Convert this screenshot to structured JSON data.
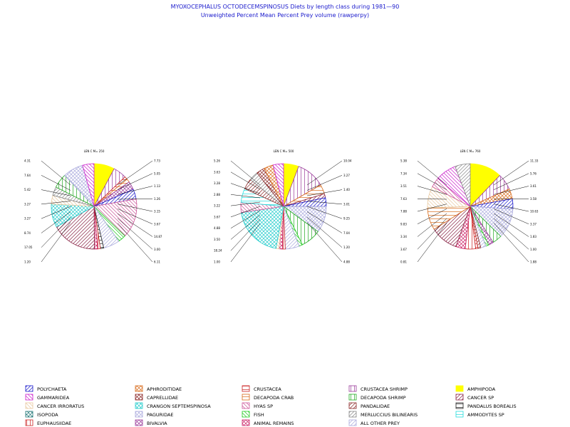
{
  "chart_data": {
    "type": "pie",
    "title": "MYOXOCEPHALUS  OCTODECEMSPINOSUS  Diets by length class during  1981—90",
    "subtitle": "Unweighted  Percent  Mean  Percent  Prey   volume  (rawperpy)",
    "legend": [
      {
        "label": "POLYCHAETA",
        "color": "#1a1acc",
        "pattern": "hatch-ne"
      },
      {
        "label": "APHRODITIDAE",
        "color": "#d86a1a",
        "pattern": "cross"
      },
      {
        "label": "CRUSTACEA",
        "color": "#cc2222",
        "pattern": "horizontal"
      },
      {
        "label": "CRUSTACEA  SHRIMP",
        "color": "#9a3a9a",
        "pattern": "vertical"
      },
      {
        "label": "AMPHIPODA",
        "color": "#ffff00",
        "pattern": "solid"
      },
      {
        "label": "GAMMARIDEA",
        "color": "#cc22cc",
        "pattern": "hatch-nw"
      },
      {
        "label": "CAPRELLIDAE",
        "color": "#882222",
        "pattern": "cross"
      },
      {
        "label": "DECAPODA  CRAB",
        "color": "#d86a1a",
        "pattern": "horizontal"
      },
      {
        "label": "DECAPODA  SHRIMP",
        "color": "#22aa22",
        "pattern": "vertical"
      },
      {
        "label": "CANCER  SP",
        "color": "#882244",
        "pattern": "hatch-ne"
      },
      {
        "label": "CANCER  IRRORATUS",
        "color": "#e8c9a0",
        "pattern": "hatch-nw"
      },
      {
        "label": "CRANGON  SEPTEMSPINOSA",
        "color": "#22cccc",
        "pattern": "cross"
      },
      {
        "label": "HYAS  SP",
        "color": "#cc5599",
        "pattern": "hatch-nw"
      },
      {
        "label": "PANDALIDAE",
        "color": "#882222",
        "pattern": "hatch-ne"
      },
      {
        "label": "PANDALUS  BOREALIS",
        "color": "#222222",
        "pattern": "horizontal"
      },
      {
        "label": "ISOPODA",
        "color": "#227777",
        "pattern": "cross"
      },
      {
        "label": "PAGURIDAE",
        "color": "#aaaadd",
        "pattern": "cross"
      },
      {
        "label": "FISH",
        "color": "#22cc22",
        "pattern": "hatch-nw"
      },
      {
        "label": "MERLUCCIUS  BILINEARIS",
        "color": "#888888",
        "pattern": "hatch-ne"
      },
      {
        "label": "AMMODYTES  SP",
        "color": "#22dddd",
        "pattern": "horizontal"
      },
      {
        "label": "EUPHAUSIIDAE",
        "color": "#cc2222",
        "pattern": "vertical"
      },
      {
        "label": "BIVALVIA",
        "color": "#9a3a9a",
        "pattern": "cross"
      },
      {
        "label": "ANIMAL  REMAINS",
        "color": "#cc2266",
        "pattern": "cross"
      },
      {
        "label": "ALL  OTHER  PREY",
        "color": "#aaaadd",
        "pattern": "hatch-ne"
      }
    ],
    "pies": [
      {
        "title": "LEN  C  M=  250",
        "slices": [
          {
            "prey": "AMPHIPODA",
            "value": 7.73
          },
          {
            "prey": "CRUSTACEA  SHRIMP",
            "value": 5.05
          },
          {
            "prey": "CRUSTACEA",
            "value": 1.13
          },
          {
            "prey": "DECAPODA  CRAB",
            "value": 1.26
          },
          {
            "prey": "BIVALVIA",
            "value": 3.15
          },
          {
            "prey": "POLYCHAETA",
            "value": 3.67
          },
          {
            "prey": "HYAS  SP",
            "value": 14.87
          },
          {
            "prey": "FISH",
            "value": 3.0
          },
          {
            "prey": "ALL  OTHER  PREY",
            "value": 6.11
          },
          {
            "prey": "PANDALUS  BOREALIS",
            "value": 1.28
          },
          {
            "prey": "EUPHAUSIIDAE",
            "value": 1.0
          },
          {
            "prey": "ANIMAL  REMAINS",
            "value": 1.2
          },
          {
            "prey": "CANCER  SP",
            "value": 17.05
          },
          {
            "prey": "CRANGON  SEPTEMSPINOSA",
            "value": 8.74
          },
          {
            "prey": "CANCER  IRRORATUS",
            "value": 3.27
          },
          {
            "prey": "MERLUCCIUS  BILINEARIS",
            "value": 3.27
          },
          {
            "prey": "DECAPODA  SHRIMP",
            "value": 5.42
          },
          {
            "prey": "PAGURIDAE",
            "value": 7.64
          },
          {
            "prey": "GAMMARIDEA",
            "value": 4.31
          }
        ],
        "labels_left": [
          "4.31",
          "7.64",
          "5.42",
          "3.27",
          "3.27",
          "8.74",
          "17.05",
          "1.20"
        ],
        "labels_right": [
          "7.73",
          "5.05",
          "1.13",
          "1.26",
          "3.15",
          "3.67",
          "14.87",
          "3.00",
          "6.11"
        ]
      },
      {
        "title": "LEN  C  M=  500",
        "slices": [
          {
            "prey": "AMPHIPODA",
            "value": 5.26
          },
          {
            "prey": "CRUSTACEA  SHRIMP",
            "value": 10.04
          },
          {
            "prey": "DECAPODA  CRAB",
            "value": 3.27
          },
          {
            "prey": "CANCER  SP",
            "value": 1.4
          },
          {
            "prey": "POLYCHAETA",
            "value": 3.01
          },
          {
            "prey": "PAGURIDAE",
            "value": 9.25
          },
          {
            "prey": "DECAPODA  SHRIMP",
            "value": 7.04
          },
          {
            "prey": "FISH",
            "value": 1.2
          },
          {
            "prey": "ALL  OTHER  PREY",
            "value": 4.88
          },
          {
            "prey": "EUPHAUSIIDAE",
            "value": 1.0
          },
          {
            "prey": "ANIMAL  REMAINS",
            "value": 1.2
          },
          {
            "prey": "CANCER  IRRORATUS",
            "value": 1.0
          },
          {
            "prey": "CRANGON  SEPTEMSPINOSA",
            "value": 18.24
          },
          {
            "prey": "HYAS  SP",
            "value": 3.5
          },
          {
            "prey": "AMMODYTES  SP",
            "value": 4.88
          },
          {
            "prey": "PANDALIDAE",
            "value": 3.67
          },
          {
            "prey": "MERLUCCIUS  BILINEARIS",
            "value": 3.22
          },
          {
            "prey": "CAPRELLIDAE",
            "value": 2.88
          },
          {
            "prey": "APHRODITIDAE",
            "value": 3.28
          },
          {
            "prey": "GAMMARIDEA",
            "value": 3.63
          }
        ],
        "labels_left": [
          "5.26",
          "3.63",
          "3.28",
          "2.88",
          "3.22",
          "3.67",
          "4.88",
          "3.50",
          "18.24",
          "1.00"
        ],
        "labels_right": [
          "10.04",
          "3.27",
          "1.40",
          "3.01",
          "9.25",
          "7.04",
          "1.20",
          "4.88"
        ]
      },
      {
        "title": "LEN  C  M=  760",
        "slices": [
          {
            "prey": "AMPHIPODA",
            "value": 11.33
          },
          {
            "prey": "CRUSTACEA  SHRIMP",
            "value": 5.76
          },
          {
            "prey": "APHRODITIDAE",
            "value": 3.61
          },
          {
            "prey": "POLYCHAETA",
            "value": 3.58
          },
          {
            "prey": "PAGURIDAE",
            "value": 10.63
          },
          {
            "prey": "DECAPODA  SHRIMP",
            "value": 3.37
          },
          {
            "prey": "BIVALVIA",
            "value": 1.83
          },
          {
            "prey": "FISH",
            "value": 1.0
          },
          {
            "prey": "ALL  OTHER  PREY",
            "value": 1.88
          },
          {
            "prey": "PANDALIDAE",
            "value": 1.0
          },
          {
            "prey": "CRUSTACEA",
            "value": 0.81
          },
          {
            "prey": "EUPHAUSIIDAE",
            "value": 3.67
          },
          {
            "prey": "ANIMAL  REMAINS",
            "value": 3.34
          },
          {
            "prey": "CANCER  SP",
            "value": 9.83
          },
          {
            "prey": "DECAPODA  CRAB",
            "value": 7.88
          },
          {
            "prey": "CANCER  IRRORATUS",
            "value": 7.63
          },
          {
            "prey": "HYAS  SP",
            "value": 3.51
          },
          {
            "prey": "GAMMARIDEA",
            "value": 7.34
          },
          {
            "prey": "MERLUCCIUS  BILINEARIS",
            "value": 5.38
          }
        ],
        "labels_left": [
          "5.38",
          "7.34",
          "3.51",
          "7.63",
          "7.88",
          "9.83",
          "3.34",
          "3.67",
          "0.81"
        ],
        "labels_right": [
          "11.33",
          "5.76",
          "3.61",
          "3.58",
          "10.63",
          "3.37",
          "1.83",
          "1.00",
          "1.88"
        ]
      }
    ]
  }
}
